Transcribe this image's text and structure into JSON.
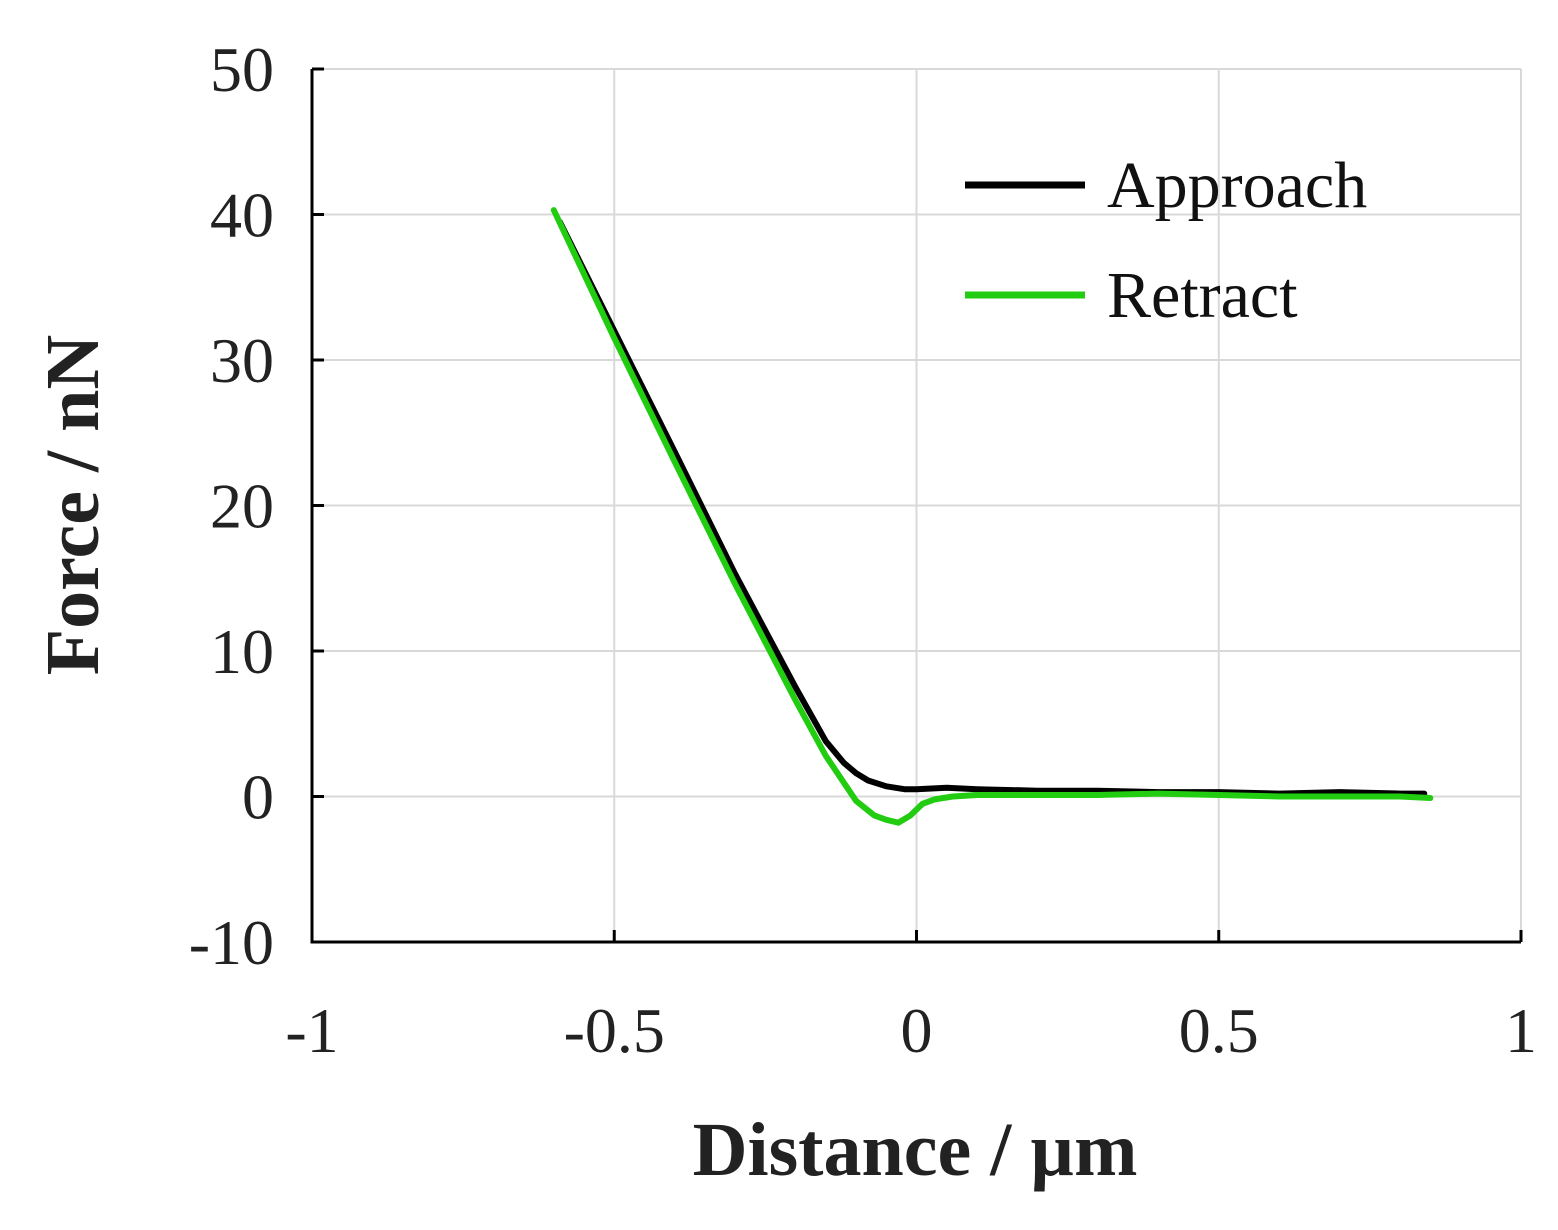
{
  "chart_data": {
    "type": "line",
    "title": "",
    "xlabel": "Distance / µm",
    "ylabel": "Force / nN",
    "xlim": [
      -1,
      1
    ],
    "ylim": [
      -10,
      50
    ],
    "x_ticks": [
      -1,
      -0.5,
      0,
      0.5,
      1
    ],
    "x_tick_labels": [
      "-1",
      "-0.5",
      "0",
      "0.5",
      "1"
    ],
    "y_ticks": [
      -10,
      0,
      10,
      20,
      30,
      40,
      50
    ],
    "y_tick_labels": [
      "-10",
      "0",
      "10",
      "20",
      "30",
      "40",
      "50"
    ],
    "grid": true,
    "legend_position": "top-right",
    "series": [
      {
        "name": "Approach",
        "color": "#000000",
        "x": [
          -0.59,
          -0.5,
          -0.4,
          -0.3,
          -0.2,
          -0.15,
          -0.12,
          -0.1,
          -0.08,
          -0.05,
          -0.02,
          0.0,
          0.05,
          0.1,
          0.2,
          0.3,
          0.4,
          0.5,
          0.6,
          0.7,
          0.8,
          0.84
        ],
        "y": [
          39.5,
          32.0,
          23.7,
          15.3,
          7.5,
          3.8,
          2.3,
          1.6,
          1.1,
          0.7,
          0.5,
          0.5,
          0.6,
          0.5,
          0.4,
          0.4,
          0.3,
          0.3,
          0.2,
          0.3,
          0.2,
          0.2
        ]
      },
      {
        "name": "Retract",
        "color": "#22cc11",
        "x": [
          -0.6,
          -0.5,
          -0.4,
          -0.3,
          -0.2,
          -0.15,
          -0.1,
          -0.07,
          -0.05,
          -0.03,
          -0.01,
          0.01,
          0.03,
          0.06,
          0.1,
          0.2,
          0.3,
          0.4,
          0.5,
          0.6,
          0.7,
          0.8,
          0.85
        ],
        "y": [
          40.3,
          31.5,
          23.0,
          14.6,
          6.6,
          2.8,
          -0.3,
          -1.3,
          -1.6,
          -1.8,
          -1.3,
          -0.5,
          -0.2,
          0.0,
          0.1,
          0.1,
          0.1,
          0.2,
          0.1,
          0.0,
          0.0,
          0.0,
          -0.1
        ]
      }
    ]
  }
}
